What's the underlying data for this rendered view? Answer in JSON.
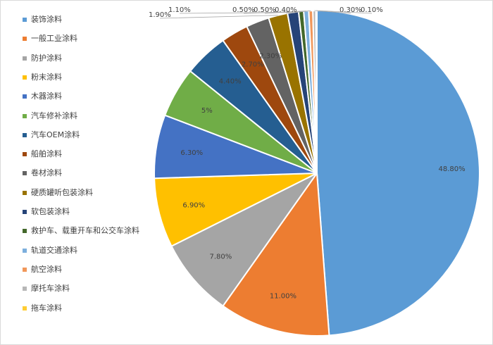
{
  "chart_data": {
    "type": "pie",
    "title": "",
    "legend_position": "left",
    "slices": [
      {
        "name": "装饰涂料",
        "value": 48.8,
        "label": "48.80%",
        "color": "#5B9BD5"
      },
      {
        "name": "一般工业涂料",
        "value": 11.0,
        "label": "11.00%",
        "color": "#ED7D31"
      },
      {
        "name": "防护涂料",
        "value": 7.8,
        "label": "7.80%",
        "color": "#A5A5A5"
      },
      {
        "name": "粉末涂料",
        "value": 6.9,
        "label": "6.90%",
        "color": "#FFC000"
      },
      {
        "name": "木器涂料",
        "value": 6.3,
        "label": "6.30%",
        "color": "#4472C4"
      },
      {
        "name": "汽车修补涂料",
        "value": 5.0,
        "label": "5%",
        "color": "#70AD47"
      },
      {
        "name": "汽车OEM涂料",
        "value": 4.4,
        "label": "4.40%",
        "color": "#255E91"
      },
      {
        "name": "船舶涂料",
        "value": 2.7,
        "label": "2.70%",
        "color": "#9E480E"
      },
      {
        "name": "卷材涂料",
        "value": 2.3,
        "label": "2.30%",
        "color": "#636363"
      },
      {
        "name": "硬质罐听包装涂料",
        "value": 1.9,
        "label": "1.90%",
        "color": "#997300"
      },
      {
        "name": "软包装涂料",
        "value": 1.1,
        "label": "1.10%",
        "color": "#264478"
      },
      {
        "name": "救护车、载重开车和公交车涂料",
        "value": 0.5,
        "label": "0.50%",
        "color": "#43682B"
      },
      {
        "name": "轨道交通涂料",
        "value": 0.5,
        "label": "0.50%",
        "color": "#7CAFDD"
      },
      {
        "name": "航空涂料",
        "value": 0.4,
        "label": "0.40%",
        "color": "#F1975A"
      },
      {
        "name": "摩托车涂料",
        "value": 0.3,
        "label": "0.30%",
        "color": "#B7B7B7"
      },
      {
        "name": "拖车涂料",
        "value": 0.1,
        "label": "0.10%",
        "color": "#FFCD33"
      }
    ]
  }
}
